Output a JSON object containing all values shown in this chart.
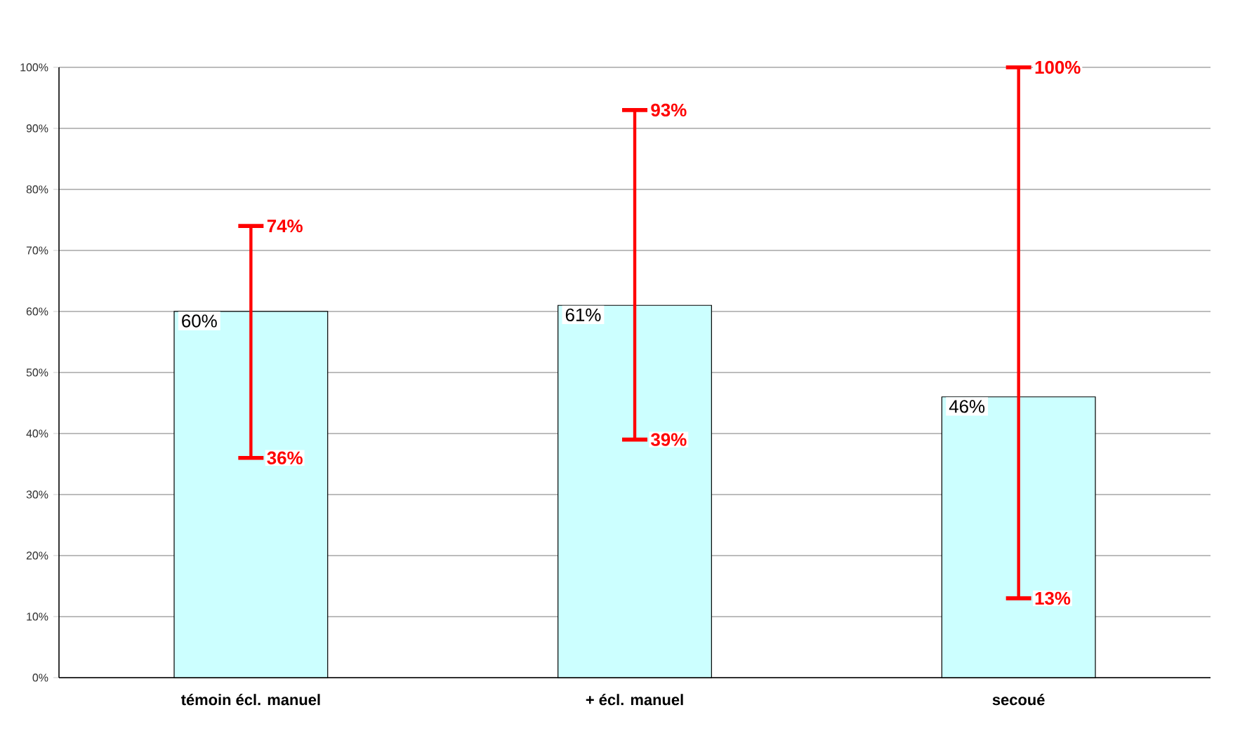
{
  "chart_data": {
    "type": "bar",
    "categories": [
      "témoin écl. manuel",
      "+ écl. manuel",
      "secoué"
    ],
    "values": [
      60,
      61,
      46
    ],
    "color": "#ccffff",
    "value_labels": [
      "60%",
      "61%",
      "46%"
    ],
    "errors": [
      [
        36,
        74
      ],
      [
        39,
        93
      ],
      [
        13,
        100
      ]
    ],
    "ylim": [
      0,
      100
    ],
    "yticks": [
      {
        "value": 0,
        "label": "0%"
      },
      {
        "value": 10,
        "label": "10%"
      },
      {
        "value": 20,
        "label": "20%"
      },
      {
        "value": 30,
        "label": "30%"
      },
      {
        "value": 40,
        "label": "40%"
      },
      {
        "value": 50,
        "label": "50%"
      },
      {
        "value": 60,
        "label": "60%"
      },
      {
        "value": 70,
        "label": "70%"
      },
      {
        "value": 80,
        "label": "80%"
      },
      {
        "value": 90,
        "label": "90%"
      },
      {
        "value": 100,
        "label": "100%"
      }
    ],
    "grid": "y",
    "annotations": [
      {
        "text": "74%",
        "x": "témoin écl. manuel",
        "y": 74
      },
      {
        "text": "36%",
        "x": "témoin écl. manuel",
        "y": 36
      },
      {
        "text": "93%",
        "x": "+ écl. manuel",
        "y": 93
      },
      {
        "text": "39%",
        "x": "+ écl. manuel",
        "y": 39
      },
      {
        "text": "100%",
        "x": "secoué",
        "y": 100
      },
      {
        "text": "13%",
        "x": "secoué",
        "y": 13
      }
    ]
  }
}
